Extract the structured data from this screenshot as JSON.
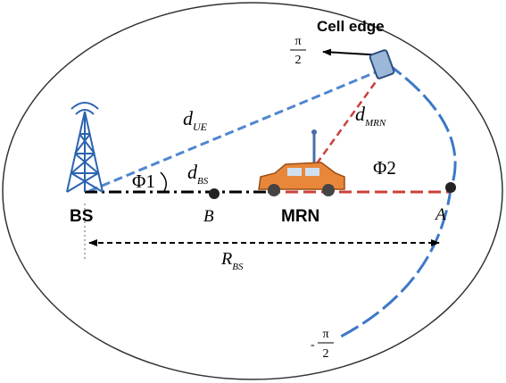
{
  "cell_edge": "Cell edge",
  "angle_top": {
    "numerator": "π",
    "denominator": "2"
  },
  "angle_bottom": {
    "sign": "-",
    "numerator": "π",
    "denominator": "2"
  },
  "d_ue": {
    "main": "d",
    "sub": "UE"
  },
  "d_mrn": {
    "main": "d",
    "sub": "MRN"
  },
  "d_bs": {
    "main": "d",
    "sub": "BS"
  },
  "phi1": "Φ1",
  "phi2": "Φ2",
  "bs": "BS",
  "point_b": "B",
  "mrn": "MRN",
  "point_a": "A",
  "r_bs": {
    "main": "R",
    "sub": "BS"
  }
}
